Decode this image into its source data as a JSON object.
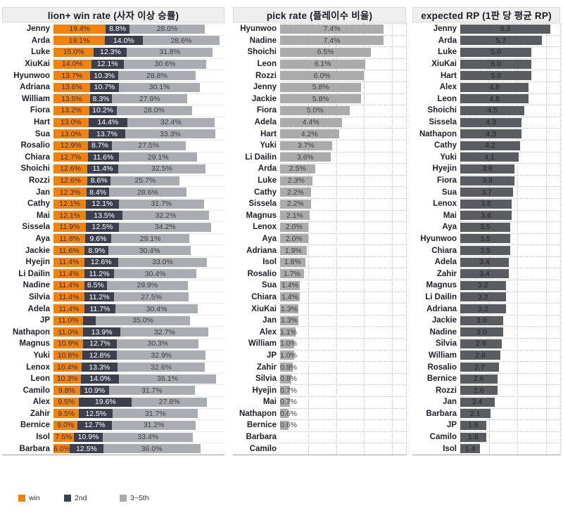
{
  "colors": {
    "win": "#F2820E",
    "second": "#3C404E",
    "rest": "#A9ACB3",
    "pick_bar": "#ABABAB",
    "rp_bar": "#595C61",
    "text_on_orange": "#32323C",
    "text_dark": "#3E3E3E",
    "text_white": "#FFFFFF",
    "text_on_rp": "#242424"
  },
  "legend": [
    {
      "label": "win",
      "color": "#F2820E"
    },
    {
      "label": "2nd",
      "color": "#3C404E"
    },
    {
      "label": "3~5th",
      "color": "#A9ACB3"
    }
  ],
  "chart_data": [
    {
      "type": "stacked_bar",
      "title": "lion+ win rate (사자 이상 승률)",
      "value_suffix": "%",
      "xlim": [
        0,
        63.5
      ],
      "grid_step": null,
      "legend_position": "bottom-left",
      "categories": [
        "Jenny",
        "Arda",
        "Luke",
        "XiuKai",
        "Hyunwoo",
        "Adriana",
        "William",
        "Fiora",
        "Hart",
        "Sua",
        "Rosalio",
        "Chiara",
        "Shoichi",
        "Rozzi",
        "Jan",
        "Cathy",
        "Mai",
        "Sissela",
        "Aya",
        "Jackie",
        "Hyejin",
        "Li Dailin",
        "Nadine",
        "Silvia",
        "Adela",
        "JP",
        "Nathapon",
        "Magnus",
        "Yuki",
        "Lenox",
        "Leon",
        "Camilo",
        "Alex",
        "Zahir",
        "Bernice",
        "Isol",
        "Barbara"
      ],
      "series": [
        {
          "name": "win",
          "color": "#F2820E",
          "text_color": "#32323C",
          "values": [
            19.4,
            19.1,
            15.0,
            14.0,
            13.7,
            13.6,
            13.5,
            13.2,
            13.0,
            13.0,
            12.9,
            12.7,
            12.6,
            12.6,
            12.3,
            12.1,
            12.1,
            11.9,
            11.8,
            11.6,
            11.4,
            11.4,
            11.4,
            11.4,
            11.4,
            11.0,
            11.0,
            10.9,
            10.8,
            10.4,
            10.3,
            9.8,
            9.5,
            9.5,
            9.0,
            7.5,
            6.0
          ]
        },
        {
          "name": "2nd",
          "color": "#3C404E",
          "text_color": "#FFFFFF",
          "overflow_text_color": "#3E3E3E",
          "values": [
            8.8,
            14.0,
            12.3,
            12.1,
            10.3,
            10.7,
            8.3,
            10.2,
            14.4,
            13.7,
            8.7,
            11.6,
            11.4,
            8.6,
            8.4,
            12.1,
            13.5,
            12.5,
            9.6,
            8.9,
            12.6,
            11.2,
            8.5,
            11.2,
            11.7,
            4.7,
            13.9,
            12.7,
            12.8,
            13.3,
            14.0,
            10.9,
            19.6,
            12.5,
            12.7,
            10.9,
            12.5
          ]
        },
        {
          "name": "3~5th",
          "color": "#A9ACB3",
          "text_color": "#3E3E3E",
          "values": [
            28.0,
            28.6,
            31.8,
            30.6,
            28.8,
            30.1,
            27.9,
            28.0,
            32.4,
            33.3,
            27.5,
            29.1,
            32.5,
            25.7,
            28.6,
            31.7,
            32.2,
            34.2,
            29.1,
            30.4,
            33.0,
            30.4,
            29.9,
            27.5,
            30.4,
            35.0,
            32.7,
            30.3,
            32.9,
            32.6,
            36.1,
            31.7,
            27.8,
            31.7,
            31.2,
            33.4,
            36.0
          ]
        }
      ]
    },
    {
      "type": "bar",
      "title": "pick rate (플레이수 비율)",
      "value_suffix": "%",
      "xlim": [
        0,
        9
      ],
      "grid_step": 2,
      "bar_color": "#ABABAB",
      "text_color": "#3E3E3E",
      "categories": [
        "Hyunwoo",
        "Nadine",
        "Shoichi",
        "Leon",
        "Rozzi",
        "Jenny",
        "Jackie",
        "Fiora",
        "Adela",
        "Hart",
        "Yuki",
        "Li Dailin",
        "Arda",
        "Luke",
        "Cathy",
        "Sissela",
        "Magnus",
        "Lenox",
        "Aya",
        "Adriana",
        "Isol",
        "Rosalio",
        "Sua",
        "Chiara",
        "XiuKai",
        "Jan",
        "Alex",
        "William",
        "JP",
        "Zahir",
        "Silvia",
        "Hyejin",
        "Mai",
        "Nathapon",
        "Bernice",
        "Barbara",
        "Camilo"
      ],
      "values": [
        7.4,
        7.4,
        6.5,
        6.1,
        6.0,
        5.8,
        5.8,
        5.0,
        4.4,
        4.2,
        3.7,
        3.6,
        2.5,
        2.3,
        2.2,
        2.2,
        2.1,
        2.0,
        2.0,
        1.9,
        1.8,
        1.7,
        1.4,
        1.4,
        1.3,
        1.3,
        1.1,
        1.0,
        1.0,
        0.9,
        0.8,
        0.7,
        0.7,
        0.6,
        0.6,
        null,
        null
      ]
    },
    {
      "type": "bar",
      "title": "expected RP (1판 당 평균 RP)",
      "value_suffix": "",
      "xlim": [
        0,
        7
      ],
      "grid_step": 2,
      "bar_color": "#595C61",
      "text_color": "#242424",
      "categories": [
        "Jenny",
        "Arda",
        "Luke",
        "XiuKai",
        "Hart",
        "Alex",
        "Leon",
        "Shoichi",
        "Sissela",
        "Nathapon",
        "Cathy",
        "Yuki",
        "Hyejin",
        "Fiora",
        "Sua",
        "Lenox",
        "Mai",
        "Aya",
        "Hyunwoo",
        "Chiara",
        "Adela",
        "Zahir",
        "Magnus",
        "Li Dailin",
        "Adriana",
        "Jackie",
        "Nadine",
        "Silvia",
        "William",
        "Rosalio",
        "Bernice",
        "Rozzi",
        "Jan",
        "Barbara",
        "JP",
        "Camilo",
        "Isol"
      ],
      "values": [
        6.3,
        5.7,
        5.0,
        5.0,
        5.0,
        4.8,
        4.8,
        4.5,
        4.3,
        4.3,
        4.2,
        4.1,
        3.8,
        3.8,
        3.7,
        3.6,
        3.6,
        3.5,
        3.5,
        3.5,
        3.4,
        3.4,
        3.2,
        3.2,
        3.2,
        3.0,
        3.0,
        2.9,
        2.8,
        2.7,
        2.6,
        2.6,
        2.4,
        2.1,
        1.8,
        1.8,
        1.4
      ]
    }
  ]
}
